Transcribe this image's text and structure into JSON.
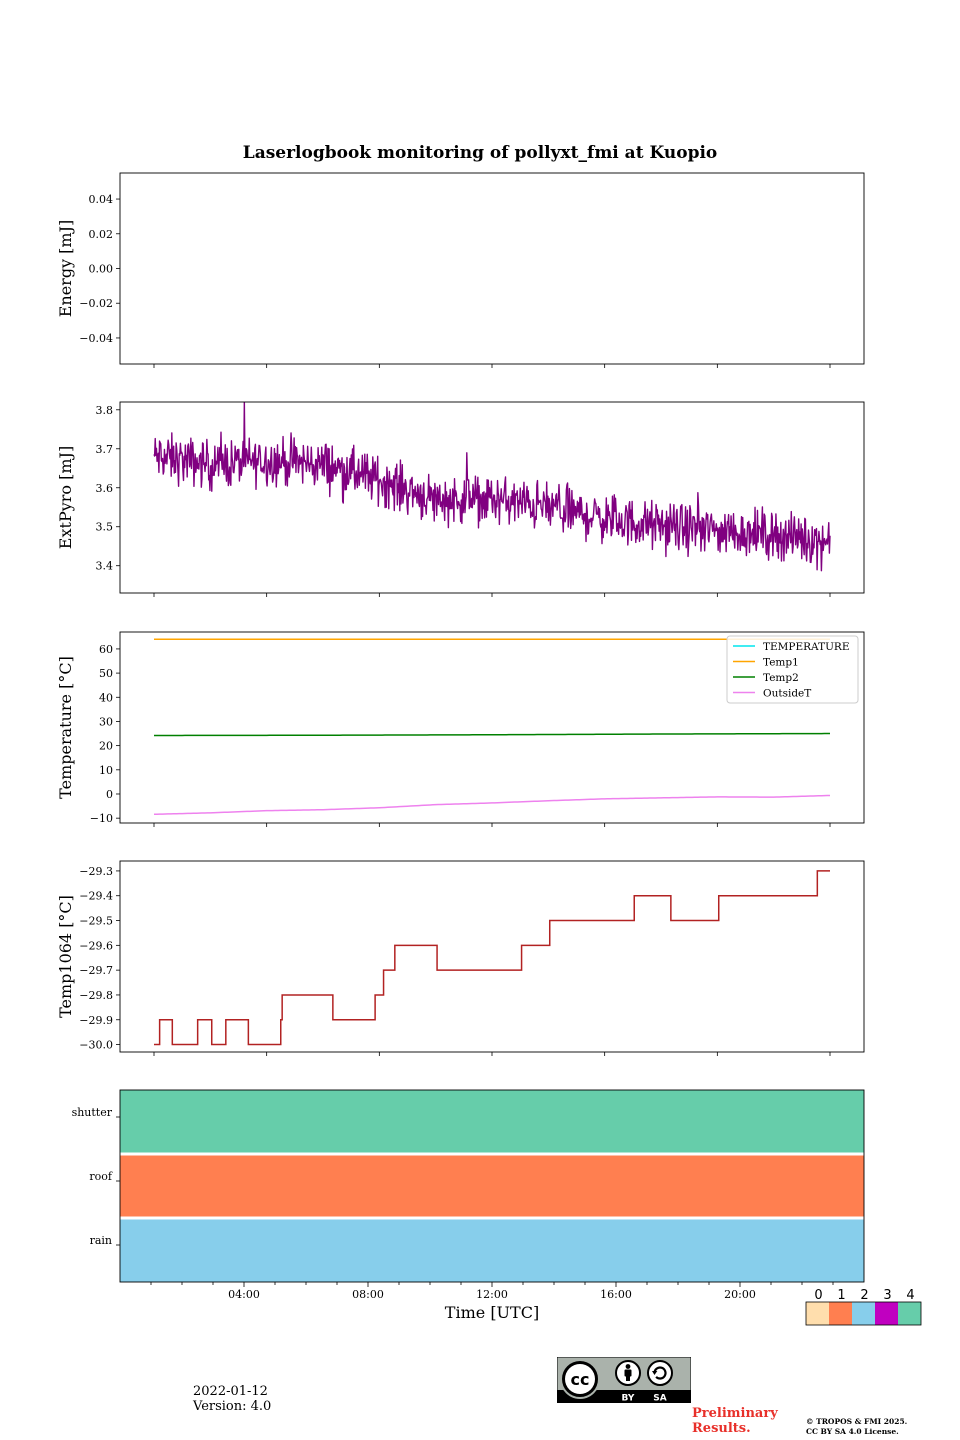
{
  "figure_title": "Laserlogbook monitoring of pollyxt_fmi at Kuopio",
  "footer": {
    "date": "2022-01-12",
    "version": "Version: 4.0",
    "preliminary_line1": "Preliminary",
    "preliminary_line2": "Results.",
    "copyright_line1": "© TROPOS & FMI 2025.",
    "copyright_line2": "CC BY SA 4.0 License.",
    "cc_badge": {
      "cc": "cc",
      "by": "BY",
      "sa": "SA"
    }
  },
  "colors": {
    "extpyro": "#800080",
    "temperature": "#00e5ee",
    "temp1": "#ffa500",
    "temp2": "#008000",
    "outsideT": "#ee82ee",
    "temp1064": "#b22222",
    "status0": "#ffdead",
    "status1": "#ff7f50",
    "status2": "#87ceeb",
    "status3": "#c000c0",
    "status4": "#66cdaa"
  },
  "chart_data": [
    {
      "type": "line",
      "ylabel": "Energy [mJ]",
      "ylim": [
        -0.055,
        0.055
      ],
      "yticks": [
        "0.04",
        "0.02",
        "0.00",
        "−0.02",
        "−0.04"
      ],
      "ytick_values": [
        0.04,
        0.02,
        0.0,
        -0.02,
        -0.04
      ],
      "xlim_hours": [
        -1.2,
        26.2
      ],
      "series": []
    },
    {
      "type": "line",
      "ylabel": "ExtPyro [mJ]",
      "ylim": [
        3.33,
        3.82
      ],
      "yticks": [
        "3.8",
        "3.7",
        "3.6",
        "3.5",
        "3.4"
      ],
      "ytick_values": [
        3.8,
        3.7,
        3.6,
        3.5,
        3.4
      ],
      "xlim_hours": [
        -1.2,
        26.2
      ],
      "series": [
        {
          "name": "ExtPyro",
          "x": [
            0,
            2,
            4,
            6,
            8,
            10,
            12,
            14,
            16,
            18,
            20,
            22,
            24
          ],
          "values": [
            3.68,
            3.66,
            3.67,
            3.66,
            3.62,
            3.57,
            3.57,
            3.55,
            3.52,
            3.5,
            3.49,
            3.48,
            3.46
          ],
          "noise_amplitude": 0.05,
          "samples": 1100
        }
      ]
    },
    {
      "type": "line",
      "ylabel": "Temperature [°C]",
      "ylim": [
        -12,
        67
      ],
      "yticks": [
        "60",
        "50",
        "40",
        "30",
        "20",
        "10",
        "0",
        "−10"
      ],
      "ytick_values": [
        60,
        50,
        40,
        30,
        20,
        10,
        0,
        -10
      ],
      "xlim_hours": [
        -1.2,
        26.2
      ],
      "legend_position": "top-right",
      "series": [
        {
          "name": "TEMPERATURE",
          "x": [],
          "values": []
        },
        {
          "name": "Temp1",
          "x": [
            0,
            24
          ],
          "values": [
            64,
            64
          ]
        },
        {
          "name": "Temp2",
          "x": [
            0,
            6,
            12,
            18,
            24
          ],
          "values": [
            24.2,
            24.3,
            24.5,
            24.8,
            25.0
          ]
        },
        {
          "name": "OutsideT",
          "x": [
            0,
            2,
            4,
            6,
            8,
            10,
            12,
            14,
            16,
            18,
            20,
            22,
            24
          ],
          "values": [
            -8.4,
            -7.8,
            -6.9,
            -6.5,
            -5.7,
            -4.4,
            -3.7,
            -2.8,
            -2.0,
            -1.6,
            -1.2,
            -1.3,
            -0.6
          ]
        }
      ]
    },
    {
      "type": "line",
      "ylabel": "Temp1064 [°C]",
      "ylim": [
        -30.03,
        -29.26
      ],
      "yticks": [
        "−29.3",
        "−29.4",
        "−29.5",
        "−29.6",
        "−29.7",
        "−29.8",
        "−29.9",
        "−30.0"
      ],
      "ytick_values": [
        -29.3,
        -29.4,
        -29.5,
        -29.6,
        -29.7,
        -29.8,
        -29.9,
        -30.0
      ],
      "xlim_hours": [
        -1.2,
        26.2
      ],
      "series": [
        {
          "name": "Temp1064",
          "type": "step",
          "x": [
            0,
            0.15,
            0.2,
            0.6,
            0.65,
            1.5,
            1.55,
            2.0,
            2.05,
            2.5,
            2.55,
            3.3,
            3.35,
            4.5,
            4.55,
            6.3,
            6.35,
            7.8,
            7.85,
            8.1,
            8.15,
            8.5,
            8.55,
            10.0,
            10.05,
            11.5,
            11.55,
            13.0,
            13.05,
            14.0,
            14.05,
            15.5,
            15.55,
            17.0,
            17.05,
            18.3,
            18.35,
            20.0,
            20.05,
            23.5,
            23.55,
            24.0
          ],
          "values": [
            -30.0,
            -30.0,
            -29.9,
            -29.9,
            -30.0,
            -30.0,
            -29.9,
            -29.9,
            -30.0,
            -30.0,
            -29.9,
            -29.9,
            -30.0,
            -29.9,
            -29.8,
            -29.8,
            -29.9,
            -29.9,
            -29.8,
            -29.8,
            -29.7,
            -29.7,
            -29.6,
            -29.6,
            -29.7,
            -29.7,
            -29.7,
            -29.7,
            -29.6,
            -29.6,
            -29.5,
            -29.5,
            -29.5,
            -29.5,
            -29.4,
            -29.4,
            -29.5,
            -29.5,
            -29.4,
            -29.4,
            -29.3,
            -29.3
          ]
        }
      ]
    },
    {
      "type": "heatmap",
      "xlabel": "Time [UTC]",
      "rows": [
        "shutter",
        "roof",
        "rain"
      ],
      "row_status": [
        4,
        1,
        2
      ],
      "xticks": [
        "04:00",
        "08:00",
        "12:00",
        "16:00",
        "20:00"
      ],
      "xtick_hours": [
        4,
        8,
        12,
        16,
        20
      ],
      "xlim_hours": [
        0,
        24
      ],
      "colorbar": {
        "labels": [
          "0",
          "1",
          "2",
          "3",
          "4"
        ],
        "values": [
          0,
          1,
          2,
          3,
          4
        ]
      }
    }
  ]
}
